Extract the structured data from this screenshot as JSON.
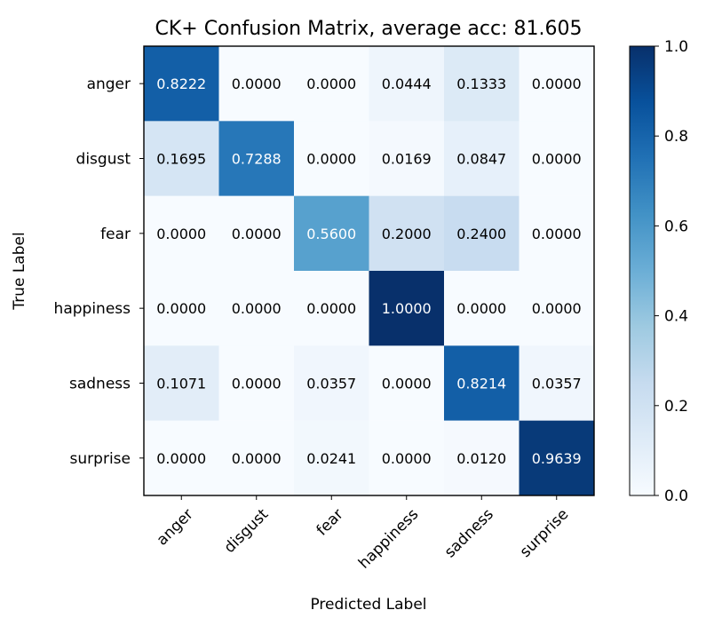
{
  "chart_data": {
    "type": "heatmap",
    "title": "CK+ Confusion Matrix, average acc: 81.605",
    "xlabel": "Predicted Label",
    "ylabel": "True Label",
    "x_categories": [
      "anger",
      "disgust",
      "fear",
      "happiness",
      "sadness",
      "surprise"
    ],
    "y_categories": [
      "anger",
      "disgust",
      "fear",
      "happiness",
      "sadness",
      "surprise"
    ],
    "values": [
      [
        0.8222,
        0.0,
        0.0,
        0.0444,
        0.1333,
        0.0
      ],
      [
        0.1695,
        0.7288,
        0.0,
        0.0169,
        0.0847,
        0.0
      ],
      [
        0.0,
        0.0,
        0.56,
        0.2,
        0.24,
        0.0
      ],
      [
        0.0,
        0.0,
        0.0,
        1.0,
        0.0,
        0.0
      ],
      [
        0.1071,
        0.0,
        0.0357,
        0.0,
        0.8214,
        0.0357
      ],
      [
        0.0,
        0.0,
        0.0241,
        0.0,
        0.012,
        0.9639
      ]
    ],
    "value_labels": [
      [
        "0.8222",
        "0.0000",
        "0.0000",
        "0.0444",
        "0.1333",
        "0.0000"
      ],
      [
        "0.1695",
        "0.7288",
        "0.0000",
        "0.0169",
        "0.0847",
        "0.0000"
      ],
      [
        "0.0000",
        "0.0000",
        "0.5600",
        "0.2000",
        "0.2400",
        "0.0000"
      ],
      [
        "0.0000",
        "0.0000",
        "0.0000",
        "1.0000",
        "0.0000",
        "0.0000"
      ],
      [
        "0.1071",
        "0.0000",
        "0.0357",
        "0.0000",
        "0.8214",
        "0.0357"
      ],
      [
        "0.0000",
        "0.0000",
        "0.0241",
        "0.0000",
        "0.0120",
        "0.9639"
      ]
    ],
    "colorbar": {
      "min": 0.0,
      "max": 1.0,
      "ticks": [
        0.0,
        0.2,
        0.4,
        0.6,
        0.8,
        1.0
      ],
      "tick_labels": [
        "0.0",
        "0.2",
        "0.4",
        "0.6",
        "0.8",
        "1.0"
      ],
      "colormap": "Blues"
    },
    "grid": false
  }
}
